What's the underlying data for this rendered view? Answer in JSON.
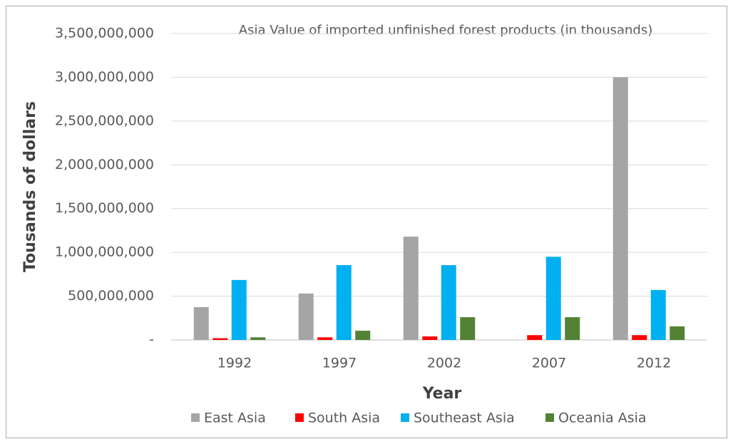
{
  "chart_data": {
    "type": "bar",
    "title": "Asia Value of imported unfinished forest products (in thousands)",
    "x_label": "Year",
    "y_label": "Tousands of dollars",
    "categories": [
      "1992",
      "1997",
      "2002",
      "2007",
      "2012"
    ],
    "series": [
      {
        "name": "East Asia",
        "color": "#a5a5a5",
        "values": [
          375000000,
          530000000,
          1180000000,
          0,
          3000000000
        ]
      },
      {
        "name": "South Asia",
        "color": "#ff0000",
        "values": [
          20000000,
          30000000,
          40000000,
          55000000,
          55000000
        ]
      },
      {
        "name": "Southeast Asia",
        "color": "#00b0f0",
        "values": [
          685000000,
          855000000,
          855000000,
          950000000,
          570000000
        ]
      },
      {
        "name": "Oceania Asia",
        "color": "#548235",
        "values": [
          30000000,
          105000000,
          260000000,
          260000000,
          155000000
        ]
      }
    ],
    "ylim": [
      0,
      3500000000
    ],
    "yticks": [
      {
        "value": 0,
        "label": "-"
      },
      {
        "value": 500000000,
        "label": "500,000,000"
      },
      {
        "value": 1000000000,
        "label": "1,000,000,000"
      },
      {
        "value": 1500000000,
        "label": "1,500,000,000"
      },
      {
        "value": 2000000000,
        "label": "2,000,000,000"
      },
      {
        "value": 2500000000,
        "label": "2,500,000,000"
      },
      {
        "value": 3000000000,
        "label": "3,000,000,000"
      },
      {
        "value": 3500000000,
        "label": "3,500,000,000"
      }
    ],
    "grid": true,
    "legend": "bottom"
  }
}
